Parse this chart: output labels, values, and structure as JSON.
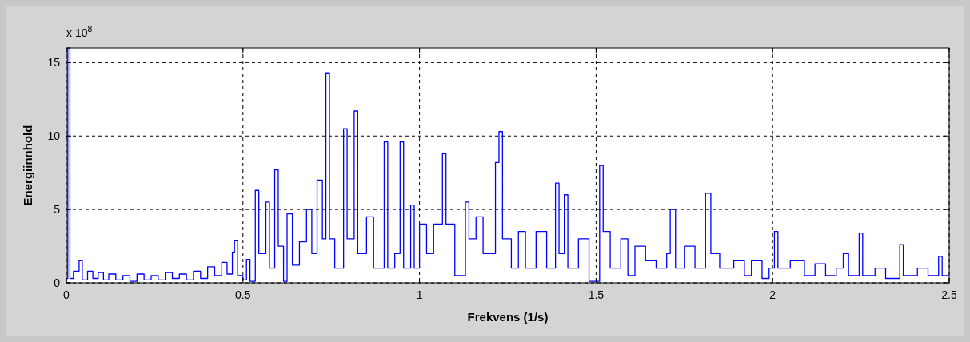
{
  "chart_data": {
    "type": "step",
    "xlabel": "Frekvens  (1/s)",
    "ylabel": "Energiinnhold",
    "annotations": [
      "x 10$^{8}$"
    ],
    "xlim": [
      0,
      2.5
    ],
    "xticks": [
      0,
      0.5,
      1,
      1.5,
      2,
      2.5
    ],
    "ylim": [
      0,
      16
    ],
    "yticks": [
      0,
      5,
      10,
      15
    ],
    "grid": true,
    "line_style": "solid",
    "series": [
      {
        "color": "#0000ff",
        "x": [
          0,
          0.004,
          0.01,
          0.02,
          0.036,
          0.045,
          0.06,
          0.075,
          0.09,
          0.105,
          0.12,
          0.14,
          0.16,
          0.18,
          0.2,
          0.22,
          0.24,
          0.26,
          0.28,
          0.3,
          0.32,
          0.34,
          0.36,
          0.38,
          0.4,
          0.42,
          0.44,
          0.455,
          0.47,
          0.476,
          0.485,
          0.5,
          0.51,
          0.52,
          0.535,
          0.545,
          0.565,
          0.575,
          0.59,
          0.6,
          0.615,
          0.625,
          0.64,
          0.66,
          0.68,
          0.695,
          0.71,
          0.725,
          0.735,
          0.745,
          0.76,
          0.785,
          0.795,
          0.815,
          0.825,
          0.85,
          0.87,
          0.9,
          0.91,
          0.93,
          0.945,
          0.955,
          0.975,
          0.985,
          1.0,
          1.02,
          1.04,
          1.065,
          1.075,
          1.1,
          1.13,
          1.14,
          1.16,
          1.18,
          1.215,
          1.225,
          1.235,
          1.26,
          1.28,
          1.3,
          1.33,
          1.36,
          1.385,
          1.395,
          1.41,
          1.42,
          1.45,
          1.48,
          1.51,
          1.52,
          1.54,
          1.57,
          1.59,
          1.61,
          1.64,
          1.67,
          1.7,
          1.71,
          1.725,
          1.75,
          1.78,
          1.81,
          1.825,
          1.85,
          1.89,
          1.92,
          1.94,
          1.97,
          1.99,
          2.005,
          2.015,
          2.05,
          2.09,
          2.12,
          2.15,
          2.18,
          2.2,
          2.215,
          2.245,
          2.255,
          2.29,
          2.32,
          2.36,
          2.37,
          2.41,
          2.44,
          2.47,
          2.48,
          2.5
        ],
        "values": [
          0.3,
          16,
          0.3,
          0.8,
          1.5,
          0.2,
          0.8,
          0.3,
          0.7,
          0.2,
          0.6,
          0.2,
          0.5,
          0.1,
          0.6,
          0.2,
          0.5,
          0.2,
          0.7,
          0.3,
          0.6,
          0.2,
          0.8,
          0.3,
          1.1,
          0.5,
          1.4,
          0.6,
          2.1,
          2.9,
          0.5,
          0.2,
          1.6,
          0.1,
          6.3,
          2,
          5.5,
          1,
          7.7,
          2.5,
          0.1,
          4.7,
          1.2,
          2.8,
          5,
          2,
          7,
          3,
          14.3,
          3,
          1,
          10.5,
          3,
          11.7,
          2,
          4.5,
          1,
          9.6,
          1,
          2,
          9.6,
          1,
          5.3,
          1,
          4,
          2,
          4,
          8.8,
          4,
          0.5,
          5.5,
          3,
          4.5,
          2,
          8.2,
          10.3,
          3,
          1,
          3.5,
          1,
          3.5,
          1,
          6.8,
          2,
          6,
          1,
          3,
          0.1,
          8,
          3.5,
          1,
          3,
          0.5,
          2.5,
          1.5,
          1,
          2,
          5,
          1,
          2.5,
          1,
          6.1,
          2,
          1,
          1.5,
          0.5,
          1.5,
          0.3,
          1,
          3.5,
          1,
          1.5,
          0.5,
          1.3,
          0.5,
          1,
          2,
          0.5,
          3.4,
          0.5,
          1,
          0.3,
          2.6,
          0.5,
          1,
          0.5,
          1.8,
          0.5,
          0.5
        ]
      }
    ]
  }
}
